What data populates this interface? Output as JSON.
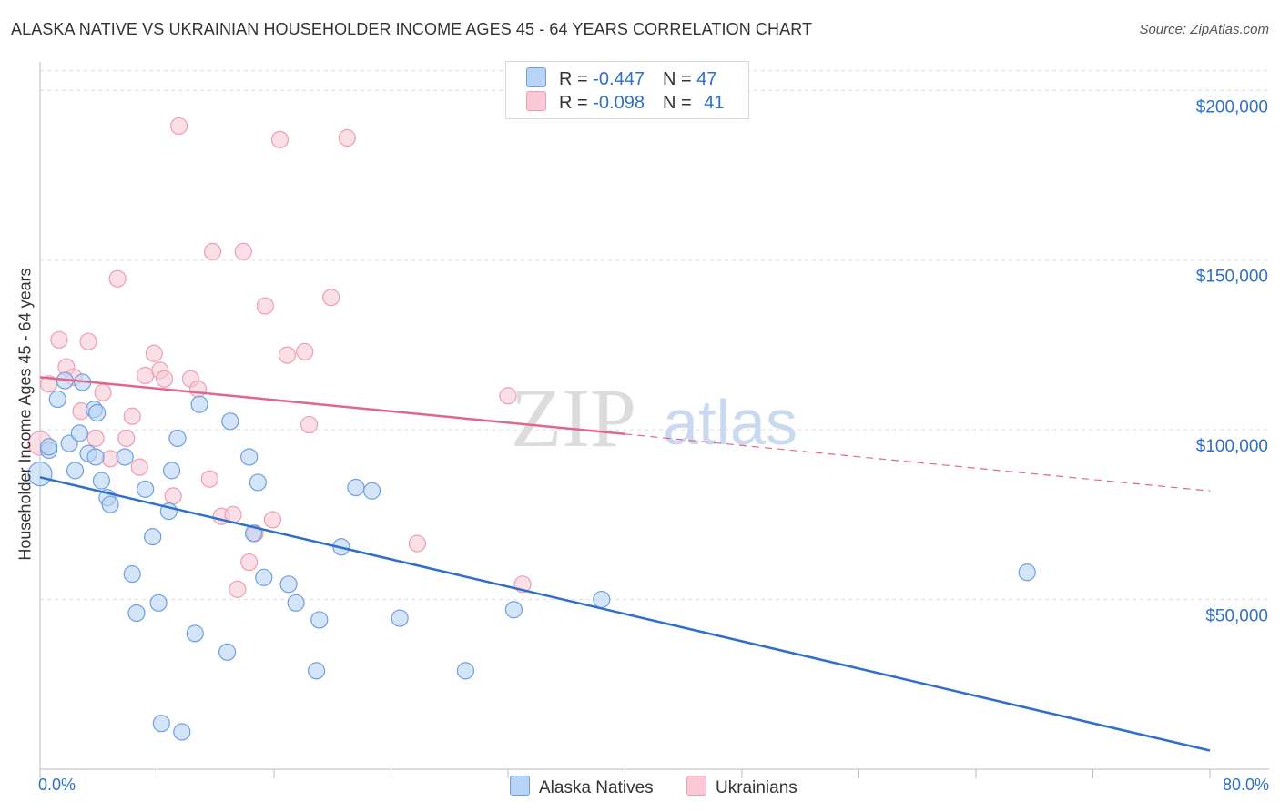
{
  "title": "ALASKA NATIVE VS UKRAINIAN HOUSEHOLDER INCOME AGES 45 - 64 YEARS CORRELATION CHART",
  "source": "Source: ZipAtlas.com",
  "watermark": {
    "zip": "ZIP",
    "atlas": "atlas"
  },
  "colors": {
    "alaska_fill": "#b9d3f5",
    "alaska_stroke": "#6e9fdc",
    "alaska_line": "#2c6fcc",
    "ukr_fill": "#f9c9d6",
    "ukr_stroke": "#ee9db4",
    "ukr_line": "#e0668e",
    "tick_text": "#2e6fc8",
    "grid": "#dddddd"
  },
  "legend": {
    "rows": [
      {
        "r_label": "R = ",
        "r_value": "-0.447",
        "n_label": "N = ",
        "n_value": "47"
      },
      {
        "r_label": "R = ",
        "r_value": "-0.098",
        "n_label": "N = ",
        "n_value": "41"
      }
    ]
  },
  "bottom_legend": {
    "alaska": "Alaska Natives",
    "ukr": "Ukrainians"
  },
  "chart_data": {
    "type": "scatter",
    "ylabel": "Householder Income Ages 45 - 64 years",
    "xlabel": "",
    "xlim": [
      0,
      80
    ],
    "ylim": [
      0,
      210000
    ],
    "x_tick_labels": [
      "0.0%",
      "80.0%"
    ],
    "y_ticks": [
      50000,
      100000,
      150000,
      200000
    ],
    "y_tick_labels": [
      "$50,000",
      "$100,000",
      "$150,000",
      "$200,000"
    ],
    "grid": true,
    "series": [
      {
        "name": "Alaska Natives",
        "r": -0.447,
        "n": 47,
        "trend": {
          "x": [
            0,
            80
          ],
          "y": [
            86000,
            5500
          ]
        },
        "points": [
          [
            0.0,
            87000
          ],
          [
            0.6,
            94000
          ],
          [
            1.2,
            109000
          ],
          [
            1.7,
            114500
          ],
          [
            2.0,
            96000
          ],
          [
            2.4,
            88000
          ],
          [
            2.7,
            99000
          ],
          [
            2.9,
            114000
          ],
          [
            3.3,
            93000
          ],
          [
            3.7,
            106000
          ],
          [
            3.8,
            92000
          ],
          [
            3.9,
            105000
          ],
          [
            4.2,
            85000
          ],
          [
            4.6,
            80000
          ],
          [
            4.8,
            78000
          ],
          [
            5.8,
            92000
          ],
          [
            6.3,
            57500
          ],
          [
            6.6,
            46000
          ],
          [
            7.2,
            82500
          ],
          [
            7.7,
            68500
          ],
          [
            8.1,
            49000
          ],
          [
            8.3,
            13500
          ],
          [
            8.8,
            76000
          ],
          [
            9.0,
            88000
          ],
          [
            9.4,
            97500
          ],
          [
            9.7,
            11000
          ],
          [
            10.6,
            40000
          ],
          [
            10.9,
            107500
          ],
          [
            12.8,
            34500
          ],
          [
            13.0,
            102500
          ],
          [
            14.3,
            92000
          ],
          [
            14.6,
            69500
          ],
          [
            14.9,
            84500
          ],
          [
            15.3,
            56500
          ],
          [
            17.0,
            54500
          ],
          [
            17.5,
            49000
          ],
          [
            18.9,
            29000
          ],
          [
            19.1,
            44000
          ],
          [
            20.6,
            65500
          ],
          [
            21.6,
            83000
          ],
          [
            22.7,
            82000
          ],
          [
            24.6,
            44500
          ],
          [
            29.1,
            29000
          ],
          [
            32.4,
            47000
          ],
          [
            38.4,
            50000
          ],
          [
            67.5,
            58000
          ],
          [
            0.6,
            95000
          ]
        ]
      },
      {
        "name": "Ukrainians",
        "r": -0.098,
        "n": 41,
        "trend": {
          "x": [
            0,
            80
          ],
          "y": [
            115500,
            82000
          ],
          "solid_until_x": 40
        },
        "points": [
          [
            0.0,
            96000
          ],
          [
            0.6,
            113500
          ],
          [
            1.3,
            126500
          ],
          [
            1.8,
            118500
          ],
          [
            2.3,
            115500
          ],
          [
            2.8,
            105500
          ],
          [
            3.3,
            126000
          ],
          [
            3.8,
            97500
          ],
          [
            4.3,
            111000
          ],
          [
            4.8,
            91500
          ],
          [
            5.3,
            144500
          ],
          [
            5.9,
            97500
          ],
          [
            6.3,
            104000
          ],
          [
            6.8,
            89000
          ],
          [
            7.2,
            116000
          ],
          [
            7.8,
            122500
          ],
          [
            8.2,
            117500
          ],
          [
            8.5,
            115000
          ],
          [
            9.1,
            80500
          ],
          [
            9.5,
            189500
          ],
          [
            10.3,
            115000
          ],
          [
            10.8,
            112000
          ],
          [
            11.6,
            85500
          ],
          [
            11.8,
            152500
          ],
          [
            12.4,
            74500
          ],
          [
            13.2,
            75000
          ],
          [
            13.5,
            53000
          ],
          [
            13.9,
            152500
          ],
          [
            14.3,
            61000
          ],
          [
            14.7,
            69500
          ],
          [
            15.4,
            136500
          ],
          [
            15.9,
            73500
          ],
          [
            16.4,
            185500
          ],
          [
            16.9,
            122000
          ],
          [
            18.1,
            123000
          ],
          [
            18.4,
            101500
          ],
          [
            19.9,
            139000
          ],
          [
            21.0,
            186000
          ],
          [
            25.8,
            66500
          ],
          [
            32.0,
            110000
          ],
          [
            33.0,
            54500
          ]
        ]
      }
    ]
  }
}
